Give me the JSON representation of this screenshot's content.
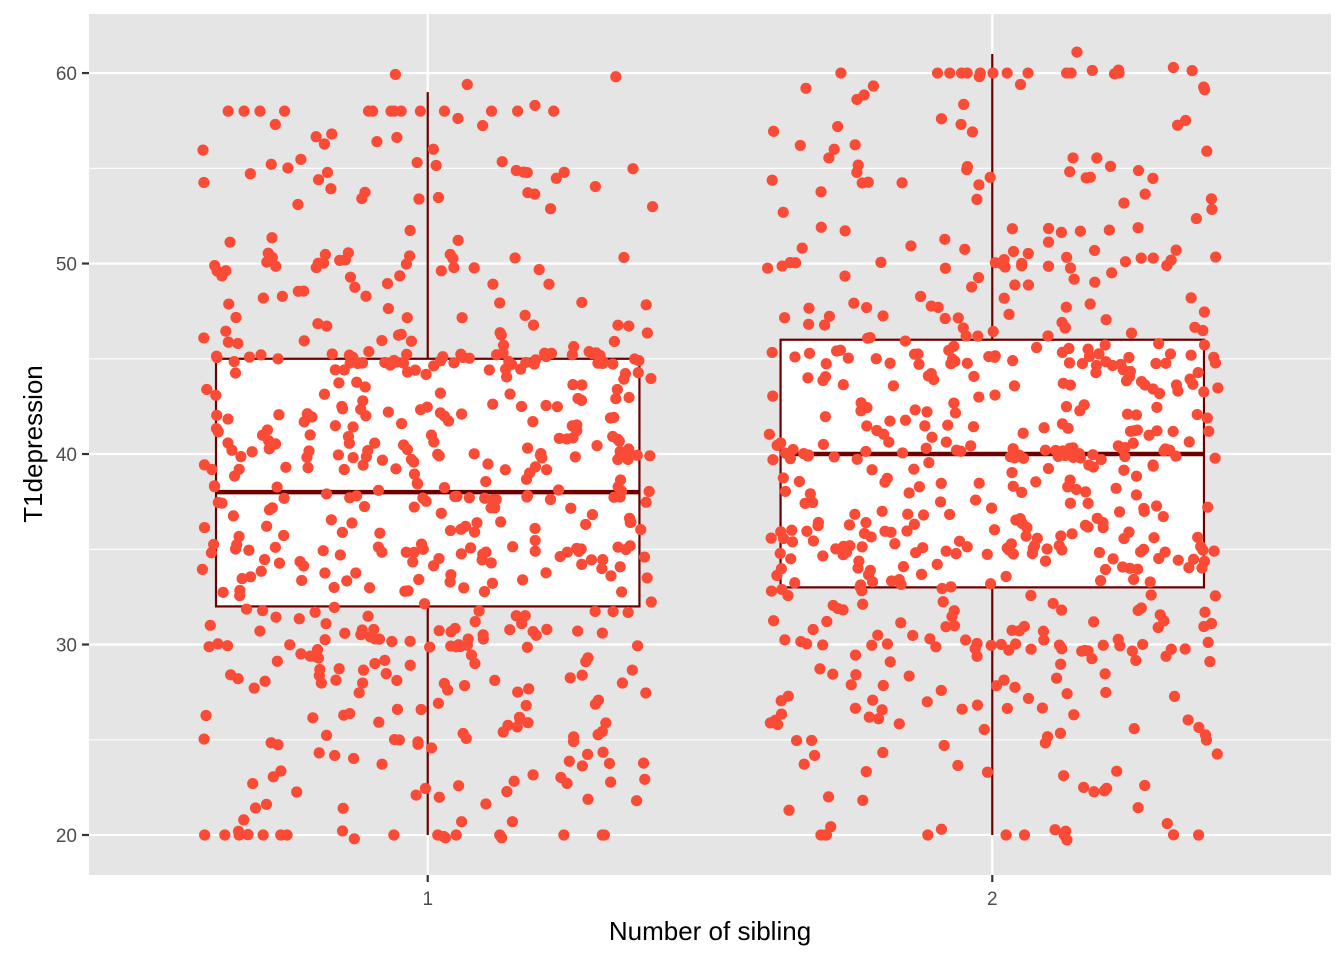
{
  "chart_data": {
    "type": "boxplot",
    "title": "",
    "xlabel": "Number of sibling",
    "ylabel": "T1depression",
    "categories": [
      "1",
      "2"
    ],
    "ylim": [
      17.9,
      63.1
    ],
    "yticks": [
      20,
      30,
      40,
      50,
      60
    ],
    "grid": true,
    "legend": "none",
    "colors": {
      "panel": "#e5e5e5",
      "grid": "#ffffff",
      "box_line": "#6b0000",
      "box_fill": "#ffffff",
      "points": "#fa4b36",
      "axis_text": "#4d4d4d",
      "title_text": "#000000"
    },
    "boxes": [
      {
        "category": "1",
        "min": 20,
        "q1": 32,
        "median": 38,
        "q3": 45,
        "max": 59
      },
      {
        "category": "2",
        "min": 20,
        "q1": 33,
        "median": 40,
        "q3": 46,
        "max": 61
      }
    ],
    "points": {
      "jitter_width": 0.4,
      "count_per_group": 600,
      "seed": 7,
      "notable": [
        {
          "category": "1",
          "x": 0.73,
          "y": 57.3
        },
        {
          "category": "1",
          "x": 0.83,
          "y": 56.8
        },
        {
          "category": "1",
          "x": 1.07,
          "y": 59.4
        },
        {
          "category": "1",
          "x": 1.19,
          "y": 58.3
        },
        {
          "category": "1",
          "x": 1.01,
          "y": 56.0
        },
        {
          "category": "1",
          "x": 0.91,
          "y": 56.4
        },
        {
          "category": "1",
          "x": 0.87,
          "y": 19.8
        },
        {
          "category": "1",
          "x": 0.94,
          "y": 20.0
        },
        {
          "category": "1",
          "x": 1.06,
          "y": 20.7
        },
        {
          "category": "1",
          "x": 1.15,
          "y": 20.7
        },
        {
          "category": "1",
          "x": 0.69,
          "y": 22.7
        },
        {
          "category": "1",
          "x": 1.37,
          "y": 21.8
        },
        {
          "category": "2",
          "x": 2.15,
          "y": 61.1
        },
        {
          "category": "2",
          "x": 2.05,
          "y": 59.4
        },
        {
          "category": "2",
          "x": 1.67,
          "y": 59.2
        },
        {
          "category": "2",
          "x": 1.91,
          "y": 57.6
        },
        {
          "category": "2",
          "x": 1.66,
          "y": 56.2
        },
        {
          "category": "2",
          "x": 1.72,
          "y": 56.0
        },
        {
          "category": "2",
          "x": 2.38,
          "y": 55.9
        },
        {
          "category": "2",
          "x": 1.91,
          "y": 20.3
        },
        {
          "category": "2",
          "x": 2.13,
          "y": 20.2
        },
        {
          "category": "2",
          "x": 2.31,
          "y": 20.6
        },
        {
          "category": "2",
          "x": 1.64,
          "y": 21.3
        },
        {
          "category": "2",
          "x": 1.71,
          "y": 22.0
        }
      ]
    }
  }
}
